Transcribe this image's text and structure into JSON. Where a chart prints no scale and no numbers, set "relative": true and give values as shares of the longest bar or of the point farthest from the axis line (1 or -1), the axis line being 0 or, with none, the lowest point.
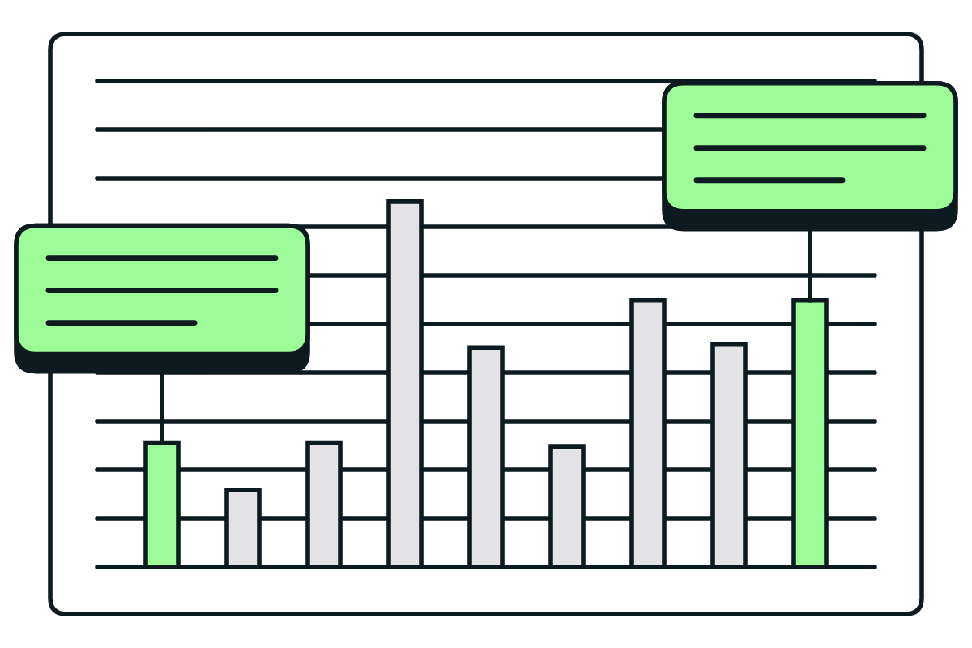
{
  "chart_data": {
    "type": "bar",
    "relative": true,
    "categories": [
      null,
      null,
      null,
      null,
      null,
      null,
      null,
      null,
      null
    ],
    "values": [
      0.34,
      0.21,
      0.34,
      1,
      0.6,
      0.33,
      0.73,
      0.61,
      0.73
    ],
    "colors": [
      "#9dfc98",
      "#e3e3e5",
      "#e3e3e5",
      "#e3e3e5",
      "#e3e3e5",
      "#e3e3e5",
      "#e3e3e5",
      "#e3e3e5",
      "#9dfc98"
    ],
    "grid": "y",
    "tick_labels": false
  }
}
